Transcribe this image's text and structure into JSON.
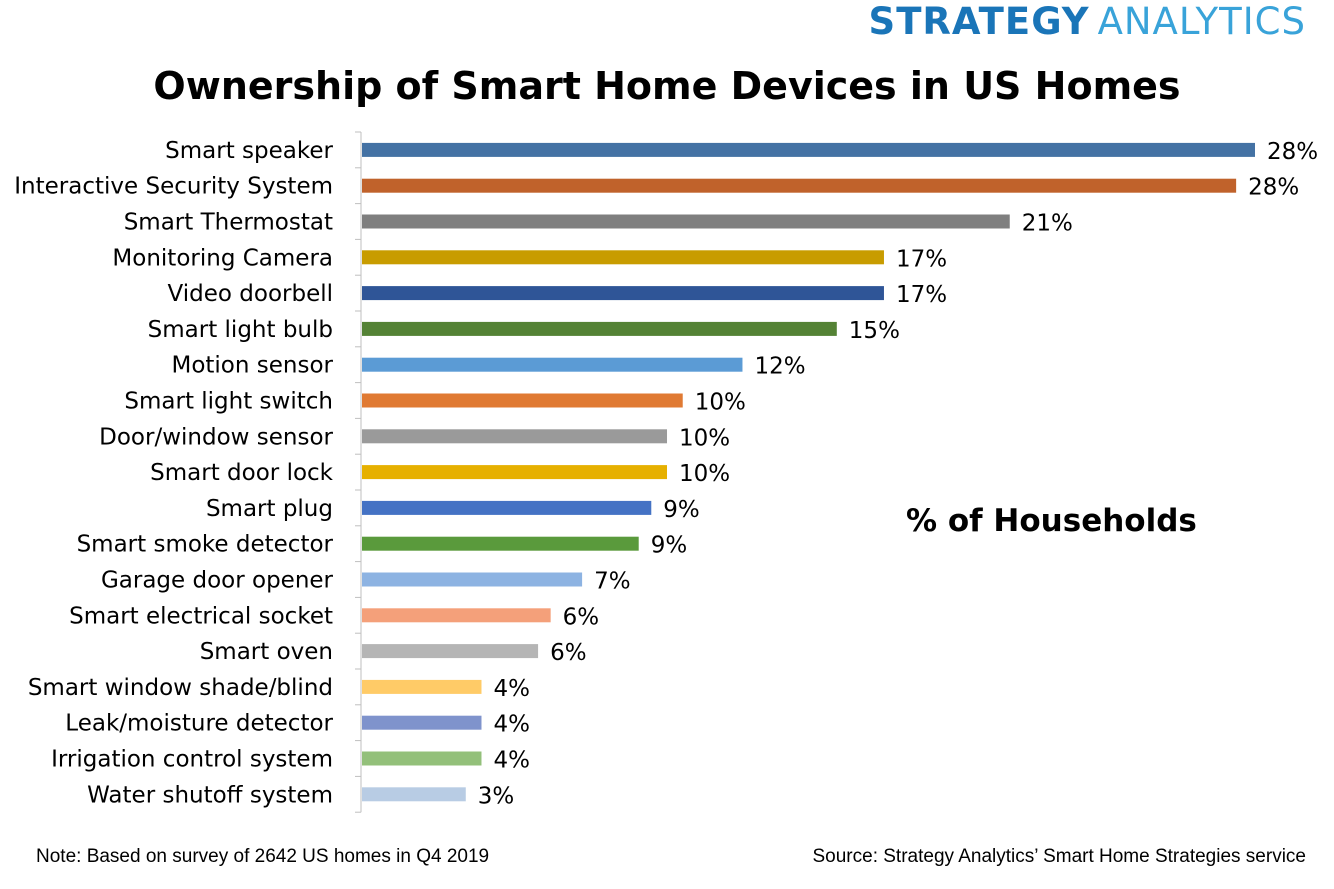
{
  "logo": {
    "word1": "STRATEGY",
    "word2": "ANALYTICS"
  },
  "unit_label": "% of Households",
  "note": "Note: Based on survey of 2642 US homes in Q4 2019",
  "source": "Source: Strategy Analytics’ Smart Home Strategies service",
  "chart_data": {
    "type": "bar",
    "orientation": "horizontal",
    "title": "Ownership of Smart Home Devices in US Homes",
    "categories": [
      "Smart speaker",
      "Interactive Security System",
      "Smart Thermostat",
      "Monitoring Camera",
      "Video doorbell",
      "Smart light bulb",
      "Motion sensor",
      "Smart light switch",
      "Door/window sensor",
      "Smart door lock",
      "Smart plug",
      "Smart smoke detector",
      "Garage door opener",
      "Smart electrical socket",
      "Smart oven",
      "Smart window shade/blind",
      "Leak/moisture detector",
      "Irrigation control system",
      "Water shutoff system"
    ],
    "values": [
      28.4,
      27.8,
      20.6,
      16.6,
      16.6,
      15.1,
      12.1,
      10.2,
      9.7,
      9.7,
      9.2,
      8.8,
      7.0,
      6.0,
      5.6,
      3.8,
      3.8,
      3.8,
      3.3
    ],
    "data_labels": [
      "28%",
      "28%",
      "21%",
      "17%",
      "17%",
      "15%",
      "12%",
      "10%",
      "10%",
      "10%",
      "9%",
      "9%",
      "7%",
      "6%",
      "6%",
      "4%",
      "4%",
      "4%",
      "3%"
    ],
    "colors": [
      "#4472a4",
      "#c0622b",
      "#7f7f7f",
      "#c89c00",
      "#2f5597",
      "#548235",
      "#5b9bd5",
      "#e07a33",
      "#9a9a9a",
      "#e6b000",
      "#4472c4",
      "#5a9a3c",
      "#8db3e2",
      "#f4a07a",
      "#b5b5b5",
      "#ffcb67",
      "#7f93cc",
      "#93c07a",
      "#b8cce4"
    ],
    "xlim": [
      0,
      28.4
    ],
    "grid": false,
    "legend": "none"
  }
}
